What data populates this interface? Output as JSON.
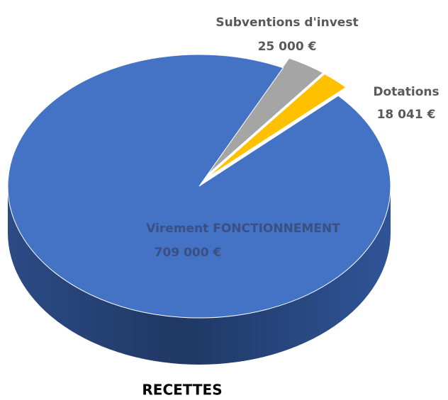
{
  "chart_data": {
    "type": "pie",
    "title": "RECETTES",
    "categories": [
      "Subventions d'invest",
      "Dotations",
      "Virement  FONCTIONNEMENT"
    ],
    "values": [
      25000,
      18041,
      709000
    ],
    "value_labels": [
      "25 000 €",
      "18 041 €",
      "709 000 €"
    ],
    "colors": [
      "#a5a5a5",
      "#ffc000",
      "#4472c4"
    ]
  }
}
